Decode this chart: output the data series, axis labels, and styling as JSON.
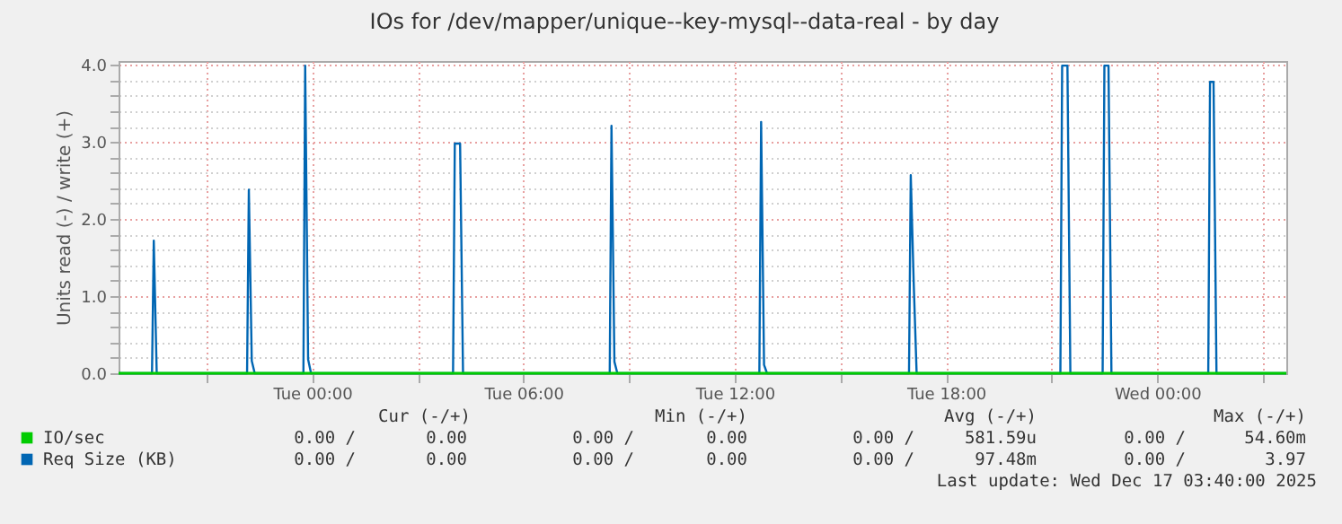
{
  "chart_data": {
    "type": "line",
    "title": "IOs for /dev/mapper/unique--key-mysql--data-real - by day",
    "ylabel": "Units read (-) / write (+)",
    "xlim": [
      "2025-12-15T18:30",
      "2025-12-17T03:40"
    ],
    "ylim": [
      0,
      4.05
    ],
    "xticks": [
      {
        "value": "2025-12-15T21:00",
        "label": null
      },
      {
        "value": "2025-12-16T00:00",
        "label": "Tue 00:00"
      },
      {
        "value": "2025-12-16T03:00",
        "label": null
      },
      {
        "value": "2025-12-16T06:00",
        "label": "Tue 06:00"
      },
      {
        "value": "2025-12-16T09:00",
        "label": null
      },
      {
        "value": "2025-12-16T12:00",
        "label": "Tue 12:00"
      },
      {
        "value": "2025-12-16T15:00",
        "label": null
      },
      {
        "value": "2025-12-16T18:00",
        "label": "Tue 18:00"
      },
      {
        "value": "2025-12-16T21:00",
        "label": null
      },
      {
        "value": "2025-12-17T00:00",
        "label": "Wed 00:00"
      },
      {
        "value": "2025-12-17T03:00",
        "label": null
      }
    ],
    "yticks": [
      {
        "value": 0,
        "label": "0.0"
      },
      {
        "value": 0.2,
        "label": null
      },
      {
        "value": 0.4,
        "label": null
      },
      {
        "value": 0.6,
        "label": null
      },
      {
        "value": 0.8,
        "label": null
      },
      {
        "value": 1,
        "label": "1.0"
      },
      {
        "value": 1.2,
        "label": null
      },
      {
        "value": 1.4,
        "label": null
      },
      {
        "value": 1.6,
        "label": null
      },
      {
        "value": 1.8,
        "label": null
      },
      {
        "value": 2,
        "label": "2.0"
      },
      {
        "value": 2.2,
        "label": null
      },
      {
        "value": 2.4,
        "label": null
      },
      {
        "value": 2.6,
        "label": null
      },
      {
        "value": 2.8,
        "label": null
      },
      {
        "value": 3,
        "label": "3.0"
      },
      {
        "value": 3.2,
        "label": null
      },
      {
        "value": 3.4,
        "label": null
      },
      {
        "value": 3.6,
        "label": null
      },
      {
        "value": 3.8,
        "label": null
      },
      {
        "value": 4,
        "label": "4.0"
      }
    ],
    "grid": true,
    "legend": "bottom",
    "series": [
      {
        "name": "Req Size (KB)",
        "color": "#0066b3",
        "x": [
          "2025-12-15T18:30",
          "2025-12-15T19:27",
          "2025-12-15T19:30",
          "2025-12-15T19:35",
          "2025-12-15T22:09",
          "2025-12-15T22:12",
          "2025-12-15T22:17",
          "2025-12-15T22:22",
          "2025-12-15T23:45",
          "2025-12-15T23:48",
          "2025-12-15T23:53",
          "2025-12-15T23:58",
          "2025-12-16T04:00",
          "2025-12-16T04:03",
          "2025-12-16T04:12",
          "2025-12-16T04:17",
          "2025-12-16T08:27",
          "2025-12-16T08:30",
          "2025-12-16T08:35",
          "2025-12-16T08:40",
          "2025-12-16T12:42",
          "2025-12-16T12:45",
          "2025-12-16T12:50",
          "2025-12-16T12:55",
          "2025-12-16T16:57",
          "2025-12-16T17:00",
          "2025-12-16T17:05",
          "2025-12-16T17:10",
          "2025-12-16T21:15",
          "2025-12-16T21:18",
          "2025-12-16T21:27",
          "2025-12-16T21:32",
          "2025-12-16T22:27",
          "2025-12-16T22:30",
          "2025-12-16T22:37",
          "2025-12-16T22:42",
          "2025-12-17T01:27",
          "2025-12-17T01:30",
          "2025-12-17T01:36",
          "2025-12-17T01:41",
          "2025-12-17T03:40"
        ],
        "values": [
          0,
          0,
          1.72,
          0,
          0,
          2.38,
          0.16,
          0,
          0,
          3.99,
          0.18,
          0,
          0,
          2.98,
          2.98,
          0,
          0,
          3.21,
          0.15,
          0,
          0,
          3.26,
          0.11,
          0,
          0,
          2.57,
          1.18,
          0,
          0,
          3.99,
          3.99,
          0,
          0,
          3.99,
          3.99,
          0,
          0,
          3.78,
          3.78,
          0,
          0
        ]
      },
      {
        "name": "IO/sec",
        "color": "#00cc00",
        "x": [
          "2025-12-15T18:30",
          "2025-12-16T06:00",
          "2025-12-16T18:00",
          "2025-12-17T03:40"
        ],
        "values": [
          0,
          0,
          0,
          0
        ]
      }
    ],
    "annotations": [
      "Cur (-/+)",
      "Min (-/+)",
      "Avg (-/+)",
      "Max (-/+)",
      "0.00 /",
      "0.00",
      "0.00 /",
      "0.00",
      "0.00 /",
      "581.59u",
      "0.00 /",
      "54.60m",
      "0.00 /",
      "0.00",
      "0.00 /",
      "0.00",
      "0.00 /",
      "97.48m",
      "0.00 /",
      "3.97",
      "Last update: Wed Dec 17 03:40:00 2025"
    ]
  }
}
